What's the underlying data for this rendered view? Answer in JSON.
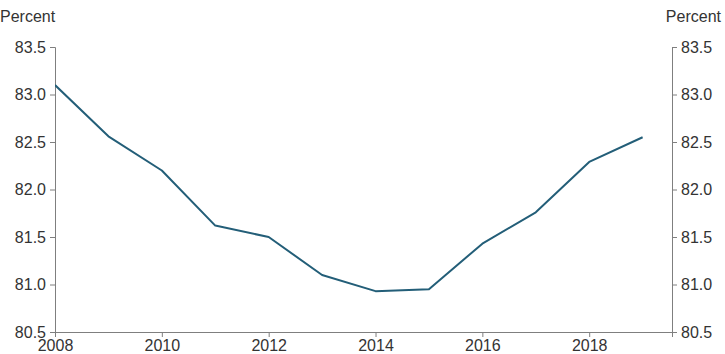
{
  "chart_data": {
    "type": "line",
    "y_label": "Percent",
    "y2_label": "Percent",
    "x": [
      2008,
      2009,
      2010,
      2011,
      2012,
      2013,
      2014,
      2015,
      2016,
      2017,
      2018,
      2019
    ],
    "values": [
      83.1,
      82.56,
      82.2,
      81.62,
      81.5,
      81.1,
      80.93,
      80.95,
      81.43,
      81.76,
      82.29,
      82.55
    ],
    "color": "#235e78",
    "xlim": [
      2008,
      2019.55
    ],
    "xticks": [
      2008,
      2010,
      2012,
      2014,
      2016,
      2018
    ],
    "ylim": [
      80.5,
      83.5
    ],
    "yticks": [
      80.5,
      {
        "value": 81,
        "label": "81.0"
      },
      81.5,
      {
        "value": 82,
        "label": "82.0"
      },
      82.5,
      {
        "value": 83,
        "label": "83.0"
      },
      83.5
    ],
    "y2lim": [
      80.5,
      83.5
    ],
    "y2ticks": [
      80.5,
      {
        "value": 81,
        "label": "81.0"
      },
      81.5,
      {
        "value": 82,
        "label": "82.0"
      },
      82.5,
      {
        "value": 83,
        "label": "83.0"
      },
      83.5
    ],
    "grid": false
  }
}
